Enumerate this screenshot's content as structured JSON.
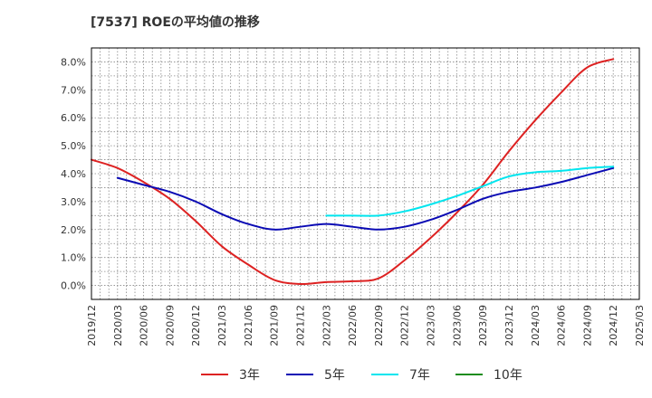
{
  "chart_data": {
    "type": "line",
    "title": "[7537]  ROEの平均値の推移",
    "xlabel": "",
    "ylabel": "",
    "ylim": [
      -0.5,
      8.5
    ],
    "y_ticks": [
      0.0,
      1.0,
      2.0,
      3.0,
      4.0,
      5.0,
      6.0,
      7.0,
      8.0
    ],
    "y_tick_labels": [
      "0.0%",
      "1.0%",
      "2.0%",
      "3.0%",
      "4.0%",
      "5.0%",
      "6.0%",
      "7.0%",
      "8.0%"
    ],
    "x_ticks": [
      "2019/12",
      "2020/03",
      "2020/06",
      "2020/09",
      "2020/12",
      "2021/03",
      "2021/06",
      "2021/09",
      "2021/12",
      "2022/03",
      "2022/06",
      "2022/09",
      "2022/12",
      "2023/03",
      "2023/06",
      "2023/09",
      "2023/12",
      "2024/03",
      "2024/06",
      "2024/09",
      "2024/12",
      "2025/03"
    ],
    "grid": true,
    "legend_position": "bottom",
    "series": [
      {
        "name": "3年",
        "color": "#dd2222",
        "x": [
          "2019/12",
          "2020/03",
          "2020/06",
          "2020/09",
          "2020/12",
          "2021/03",
          "2021/06",
          "2021/09",
          "2021/12",
          "2022/03",
          "2022/06",
          "2022/09",
          "2022/12",
          "2023/03",
          "2023/06",
          "2023/09",
          "2023/12",
          "2024/03",
          "2024/06",
          "2024/09",
          "2024/12"
        ],
        "values": [
          4.5,
          4.2,
          3.7,
          3.1,
          2.3,
          1.4,
          0.75,
          0.2,
          0.05,
          0.12,
          0.15,
          0.25,
          0.9,
          1.7,
          2.6,
          3.6,
          4.8,
          5.9,
          6.9,
          7.8,
          8.1
        ]
      },
      {
        "name": "5年",
        "color": "#0a0ab4",
        "x": [
          "2020/03",
          "2020/06",
          "2020/09",
          "2020/12",
          "2021/03",
          "2021/06",
          "2021/09",
          "2021/12",
          "2022/03",
          "2022/06",
          "2022/09",
          "2022/12",
          "2023/03",
          "2023/06",
          "2023/09",
          "2023/12",
          "2024/03",
          "2024/06",
          "2024/09",
          "2024/12"
        ],
        "values": [
          3.85,
          3.6,
          3.35,
          3.0,
          2.55,
          2.2,
          2.0,
          2.1,
          2.2,
          2.1,
          2.0,
          2.1,
          2.35,
          2.7,
          3.1,
          3.35,
          3.5,
          3.7,
          3.95,
          4.2
        ]
      },
      {
        "name": "7年",
        "color": "#00e5ee",
        "x": [
          "2022/03",
          "2022/06",
          "2022/09",
          "2022/12",
          "2023/03",
          "2023/06",
          "2023/09",
          "2023/12",
          "2024/03",
          "2024/06",
          "2024/09",
          "2024/12"
        ],
        "values": [
          2.5,
          2.5,
          2.5,
          2.65,
          2.9,
          3.2,
          3.55,
          3.9,
          4.05,
          4.1,
          4.2,
          4.25
        ]
      },
      {
        "name": "10年",
        "color": "#1e8c1e",
        "x": [],
        "values": []
      }
    ]
  }
}
